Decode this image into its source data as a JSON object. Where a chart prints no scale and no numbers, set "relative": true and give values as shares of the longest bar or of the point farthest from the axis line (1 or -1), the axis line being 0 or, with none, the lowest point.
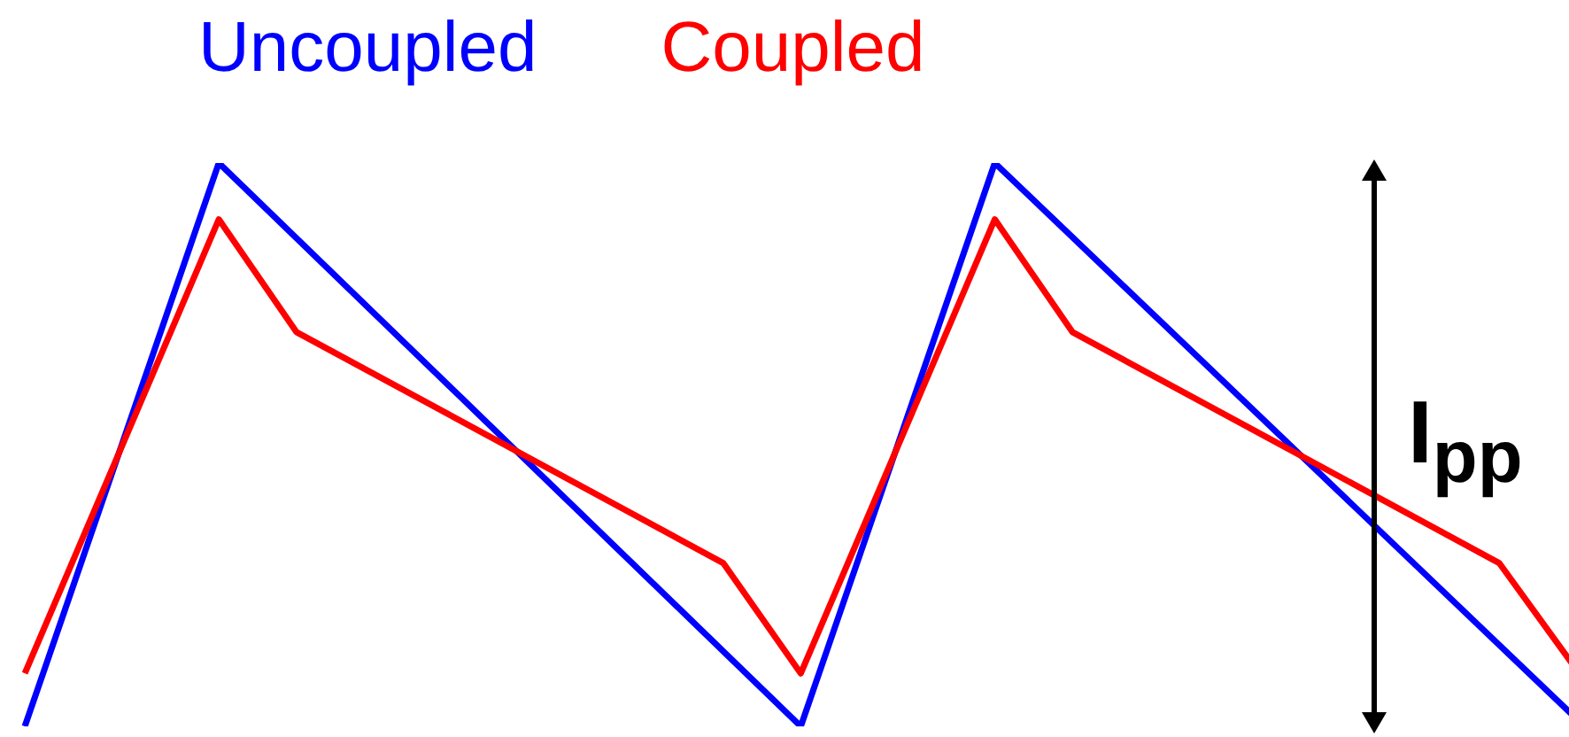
{
  "chart_data": {
    "type": "line",
    "relative": true,
    "tick_labels": false,
    "grid": false,
    "categories": [
      null,
      null,
      null,
      null,
      null,
      null,
      null,
      null,
      null,
      null,
      null,
      null,
      null,
      null,
      null,
      null,
      null,
      null,
      null,
      null,
      null,
      null,
      null,
      null,
      null,
      null,
      null,
      null,
      null,
      null,
      null,
      null,
      null,
      null,
      null,
      null,
      null,
      null,
      null,
      null,
      null
    ],
    "series": [
      {
        "name": "Uncoupled",
        "color": "#0000ff",
        "values": [
          0,
          null,
          null,
          null,
          null,
          1,
          null,
          null,
          null,
          null,
          null,
          null,
          null,
          null,
          null,
          null,
          null,
          null,
          null,
          null,
          0,
          null,
          null,
          null,
          null,
          1,
          null,
          null,
          null,
          null,
          null,
          null,
          null,
          null,
          null,
          null,
          null,
          null,
          null,
          null,
          0.013
        ]
      },
      {
        "name": "Coupled",
        "color": "#ff0000",
        "values": [
          0.094,
          null,
          null,
          null,
          null,
          0.9,
          null,
          0.7,
          null,
          null,
          null,
          null,
          null,
          null,
          null,
          null,
          null,
          null,
          0.29,
          null,
          0.094,
          null,
          null,
          null,
          null,
          0.9,
          null,
          0.7,
          null,
          null,
          null,
          null,
          null,
          null,
          null,
          null,
          null,
          null,
          0.29,
          null,
          0.1
        ]
      }
    ],
    "annotations": [
      "I$_{pp}$"
    ]
  }
}
